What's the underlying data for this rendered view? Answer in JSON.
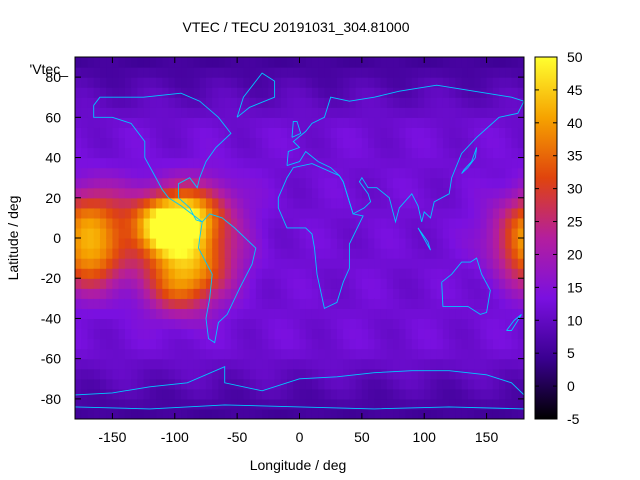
{
  "chart_data": {
    "type": "heatmap",
    "title": "VTEC / TECU 20191031_304.81000",
    "xlabel": "Longitude / deg",
    "ylabel": "Latitude / deg",
    "legend_entry": "'Vtec_",
    "xlim": [
      -180,
      180
    ],
    "ylim": [
      -90,
      90
    ],
    "x_ticks": [
      -150,
      -100,
      -50,
      0,
      50,
      100,
      150
    ],
    "y_ticks": [
      -80,
      -60,
      -40,
      -20,
      0,
      20,
      40,
      60,
      80
    ],
    "colorbar": {
      "range": [
        -5,
        50
      ],
      "ticks": [
        -5,
        0,
        5,
        10,
        15,
        20,
        25,
        30,
        35,
        40,
        45,
        50
      ],
      "palette": [
        "#000000",
        "#3a0090",
        "#7a10e0",
        "#b41e9e",
        "#e0440d",
        "#f6a300",
        "#ffff30"
      ]
    },
    "grid": false,
    "features": {
      "background_tec": 12,
      "high_latitude_tec": 5,
      "enhancements": [
        {
          "lon": -165,
          "lat": 12,
          "peak": 30
        },
        {
          "lon": -165,
          "lat": -12,
          "peak": 32
        },
        {
          "lon": -110,
          "lat": 5,
          "peak": 40
        },
        {
          "lon": -95,
          "lat": 8,
          "peak": 36
        },
        {
          "lon": -95,
          "lat": -22,
          "peak": 36
        },
        {
          "lon": -70,
          "lat": -10,
          "peak": 24
        },
        {
          "lon": -70,
          "lat": 15,
          "peak": 22
        },
        {
          "lon": 175,
          "lat": 0,
          "peak": 24
        }
      ]
    },
    "coastlines_color": "#00c8ff"
  }
}
